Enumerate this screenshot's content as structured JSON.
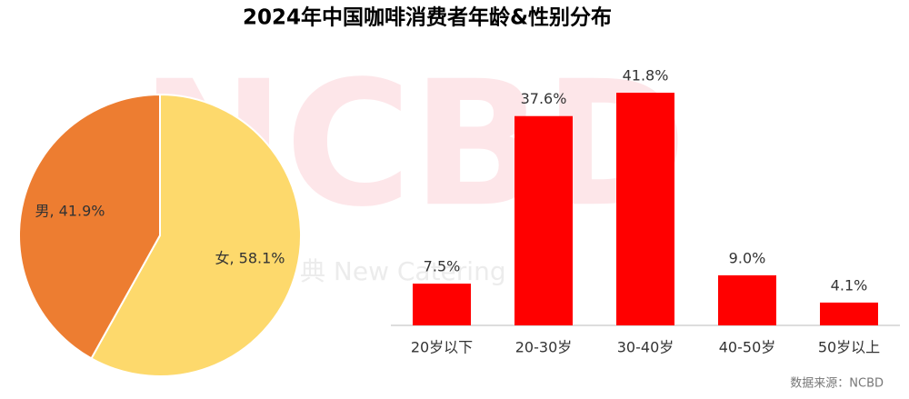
{
  "title": "2024年中国咖啡消费者年龄&性别分布",
  "source": "数据来源：NCBD",
  "watermark": [
    "NCBD",
    "典 New Catering Data"
  ],
  "chart_data": [
    {
      "type": "pie",
      "categories": [
        "女",
        "男"
      ],
      "values": [
        58.1,
        41.9
      ],
      "value_labels": [
        "女, 58.1%",
        "男, 41.9%"
      ],
      "colors": [
        "#FDD96C",
        "#ED7D31"
      ]
    },
    {
      "type": "bar",
      "categories": [
        "20岁以下",
        "20-30岁",
        "30-40岁",
        "40-50岁",
        "50岁以上"
      ],
      "values": [
        7.5,
        37.6,
        41.8,
        9.0,
        4.1
      ],
      "value_labels": [
        "7.5%",
        "37.6%",
        "41.8%",
        "9.0%",
        "4.1%"
      ],
      "color": "#FF0000"
    }
  ]
}
